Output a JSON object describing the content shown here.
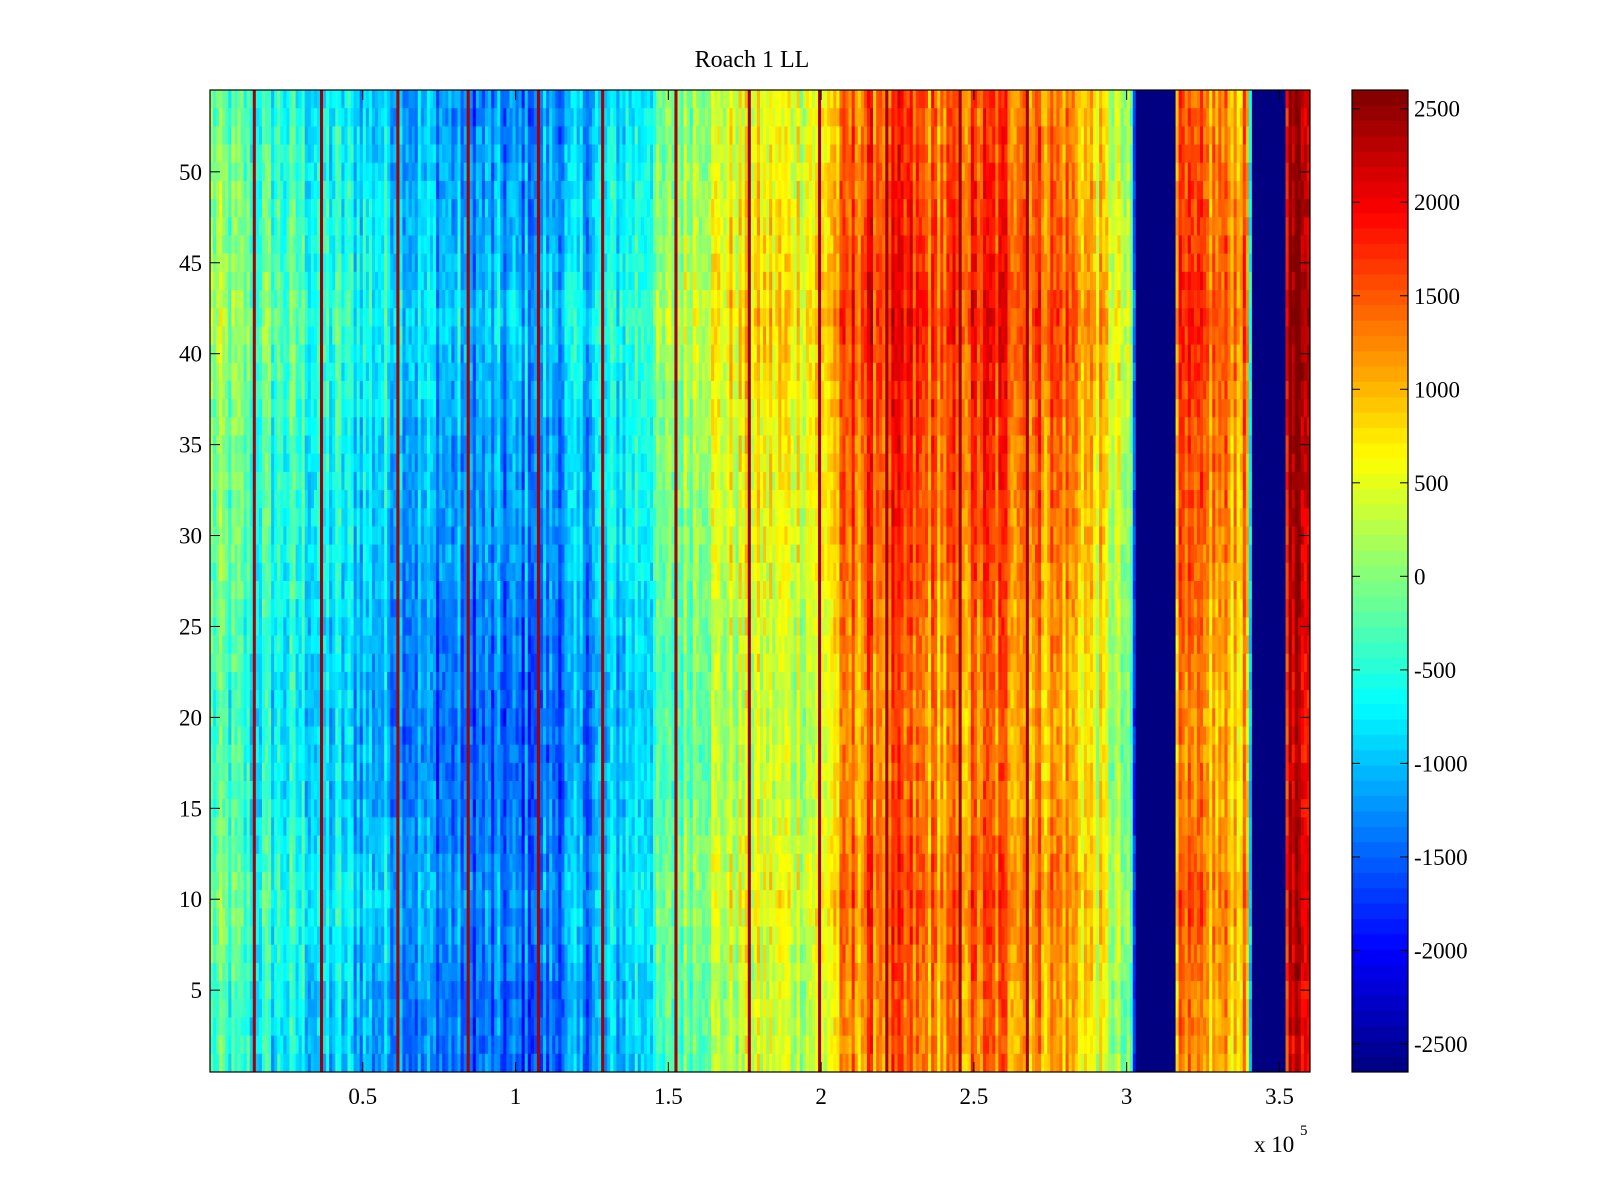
{
  "chart_data": {
    "type": "heatmap",
    "title": "Roach 1 LL",
    "xlabel": "",
    "ylabel": "",
    "x_multiplier_label": "x 10",
    "x_multiplier_exponent": "5",
    "xlim": [
      0,
      360000
    ],
    "ylim": [
      0.5,
      54.5
    ],
    "rows": 54,
    "x_ticks": [
      {
        "value": 50000,
        "label": "0.5"
      },
      {
        "value": 100000,
        "label": "1"
      },
      {
        "value": 150000,
        "label": "1.5"
      },
      {
        "value": 200000,
        "label": "2"
      },
      {
        "value": 250000,
        "label": "2.5"
      },
      {
        "value": 300000,
        "label": "3"
      },
      {
        "value": 350000,
        "label": "3.5"
      }
    ],
    "y_ticks": [
      {
        "value": 5,
        "label": "5"
      },
      {
        "value": 10,
        "label": "10"
      },
      {
        "value": 15,
        "label": "15"
      },
      {
        "value": 20,
        "label": "20"
      },
      {
        "value": 25,
        "label": "25"
      },
      {
        "value": 30,
        "label": "30"
      },
      {
        "value": 35,
        "label": "35"
      },
      {
        "value": 40,
        "label": "40"
      },
      {
        "value": 45,
        "label": "45"
      },
      {
        "value": 50,
        "label": "50"
      }
    ],
    "colorbar": {
      "colormap": "jet",
      "clim": [
        -2650,
        2600
      ],
      "ticks": [
        {
          "value": 2500,
          "label": "2500"
        },
        {
          "value": 2000,
          "label": "2000"
        },
        {
          "value": 1500,
          "label": "1500"
        },
        {
          "value": 1000,
          "label": "1000"
        },
        {
          "value": 500,
          "label": "500"
        },
        {
          "value": 0,
          "label": "0"
        },
        {
          "value": -500,
          "label": "-500"
        },
        {
          "value": -1000,
          "label": "-1000"
        },
        {
          "value": -1500,
          "label": "-1500"
        },
        {
          "value": -2000,
          "label": "-2000"
        },
        {
          "value": -2500,
          "label": "-2500"
        }
      ]
    },
    "column_profile_x": [
      0,
      10000,
      20000,
      30000,
      40000,
      50000,
      60000,
      70000,
      80000,
      90000,
      100000,
      110000,
      120000,
      130000,
      140000,
      150000,
      160000,
      170000,
      180000,
      190000,
      200000,
      210000,
      220000,
      230000,
      240000,
      250000,
      260000,
      270000,
      280000,
      290000,
      300000,
      302000,
      303000,
      315000,
      316000,
      330000,
      340000,
      341000,
      351000,
      352000,
      360000
    ],
    "column_profile_value": [
      -200,
      -400,
      -550,
      -650,
      -800,
      -900,
      -1000,
      -1200,
      -1300,
      -1400,
      -1400,
      -1300,
      -1200,
      -1000,
      -700,
      -300,
      200,
      350,
      450,
      450,
      500,
      1300,
      1500,
      1400,
      1200,
      1400,
      1450,
      1300,
      1200,
      700,
      -100,
      -600,
      -2650,
      -2650,
      1200,
      1100,
      1050,
      -2650,
      -2650,
      2100,
      2400
    ],
    "row_profile_y": [
      1,
      5,
      10,
      15,
      20,
      25,
      30,
      35,
      40,
      42,
      45,
      50,
      54
    ],
    "row_profile_offset": [
      -150,
      -100,
      100,
      -100,
      -150,
      -50,
      100,
      150,
      300,
      400,
      250,
      150,
      50
    ],
    "dark_band_ranges": [
      [
        303000,
        316000
      ],
      [
        341000,
        352000
      ]
    ],
    "dark_band_value": -2650,
    "spike_lines_x": [
      14000,
      36000,
      61000,
      84000,
      107000,
      128000,
      152000,
      176000,
      199000,
      221000,
      245000,
      267000
    ]
  }
}
